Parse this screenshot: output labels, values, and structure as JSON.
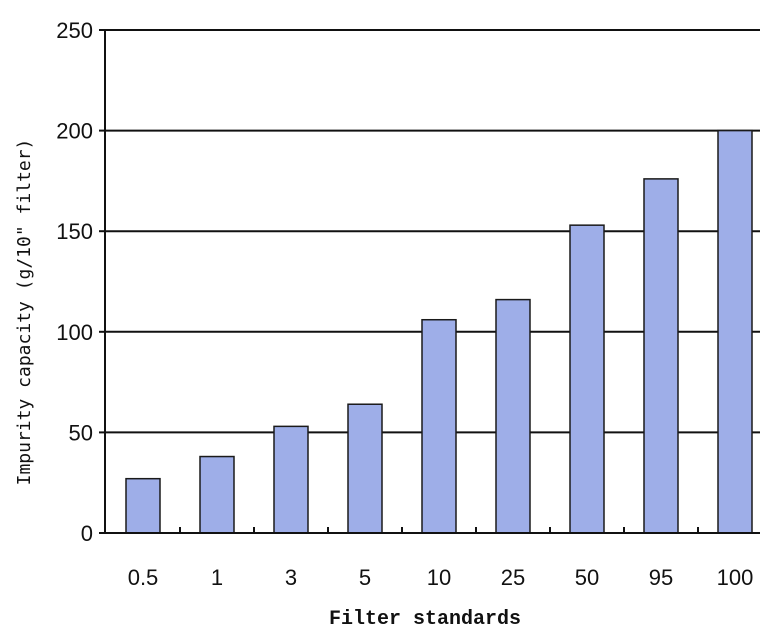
{
  "chart_data": {
    "type": "bar",
    "categories": [
      "0.5",
      "1",
      "3",
      "5",
      "10",
      "25",
      "50",
      "95",
      "100"
    ],
    "values": [
      27,
      38,
      53,
      64,
      106,
      116,
      153,
      176,
      200
    ],
    "xlabel": "Filter standards",
    "ylabel": "Impurity capacity (g/10\" filter)",
    "ylim": [
      0,
      250
    ],
    "yticks": [
      "0",
      "50",
      "100",
      "150",
      "200",
      "250"
    ],
    "grid": true,
    "bar_color": "#9eaee8",
    "bar_border_color": "#1a1a1a"
  }
}
